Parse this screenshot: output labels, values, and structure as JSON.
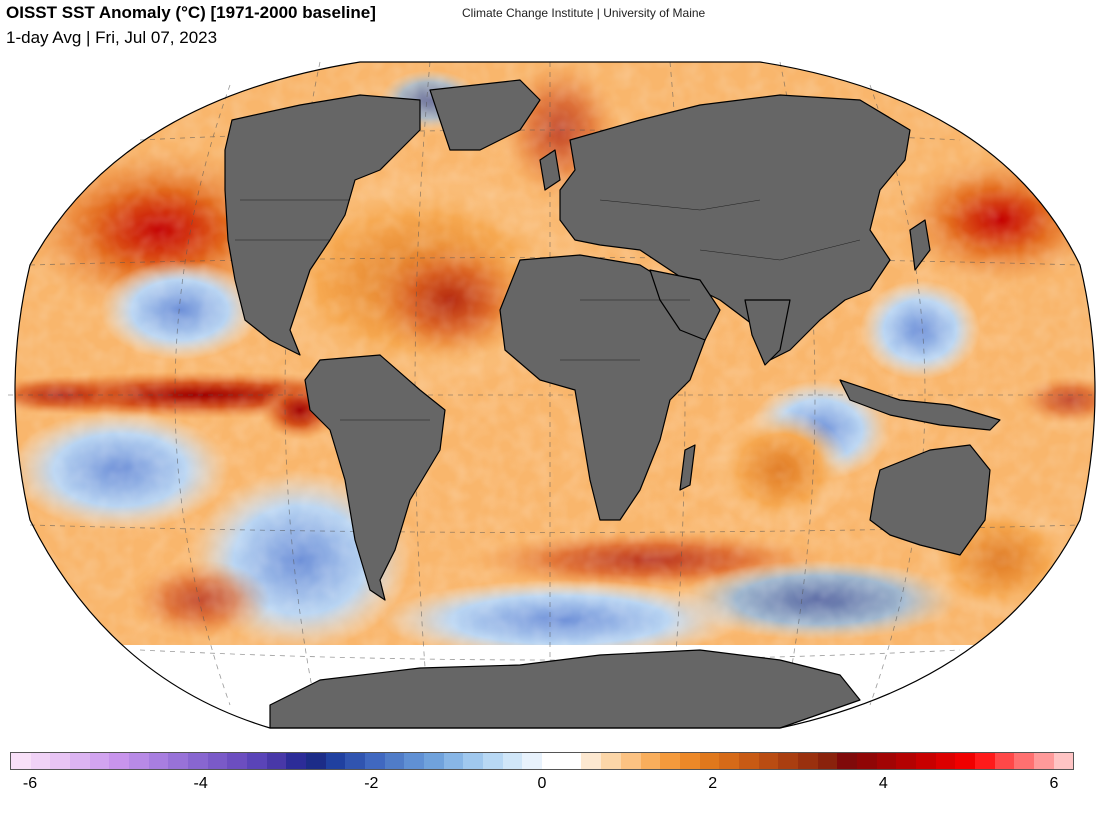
{
  "header": {
    "title": "OISST SST Anomaly (°C) [1971-2000 baseline]",
    "subtitle": "1-day Avg | Fri, Jul 07, 2023",
    "credit": "Climate Change Institute | University of Maine"
  },
  "colors": {
    "land": "#666666",
    "coast": "#000000",
    "grid": "#555555"
  },
  "colorbar": {
    "min": -6,
    "max": 6,
    "tick_labels": [
      "-6",
      "-4",
      "-2",
      "0",
      "2",
      "4",
      "6"
    ],
    "colors": [
      "#f8e0f8",
      "#f0d2f6",
      "#e8c4f4",
      "#dcb4f2",
      "#d2a4f0",
      "#c894ec",
      "#b88ae6",
      "#a87ee0",
      "#9872d8",
      "#8866d0",
      "#7a5ac8",
      "#6c4ec0",
      "#5a44b8",
      "#4838a8",
      "#2c2c98",
      "#1c2c88",
      "#2040a0",
      "#3054b0",
      "#4068c0",
      "#507cc8",
      "#6090d4",
      "#70a2dc",
      "#88b6e6",
      "#a0c8ee",
      "#b8d8f4",
      "#d0e6f8",
      "#e8f2fc",
      "#ffffff",
      "#ffffff",
      "#fde8d0",
      "#fcd6a8",
      "#fcc282",
      "#f9ae5c",
      "#f49a3c",
      "#ec8828",
      "#e0781c",
      "#d66a18",
      "#c85a14",
      "#ba4c12",
      "#aa3e10",
      "#9a300e",
      "#8a220c",
      "#800a0a",
      "#900606",
      "#a20404",
      "#b40202",
      "#c80000",
      "#dc0000",
      "#f00000",
      "#ff1a1a",
      "#ff4848",
      "#ff7070",
      "#ff9a9a",
      "#ffc4c4"
    ]
  },
  "map": {
    "projection": "Winkel tripel",
    "sst_anomaly_pattern": "mostly positive (orange) with warm equatorial eastern Pacific, North Atlantic, Mediterranean and NW Pacific; negative (blue) patches in Southern Ocean and mid-latitude South Pacific"
  }
}
